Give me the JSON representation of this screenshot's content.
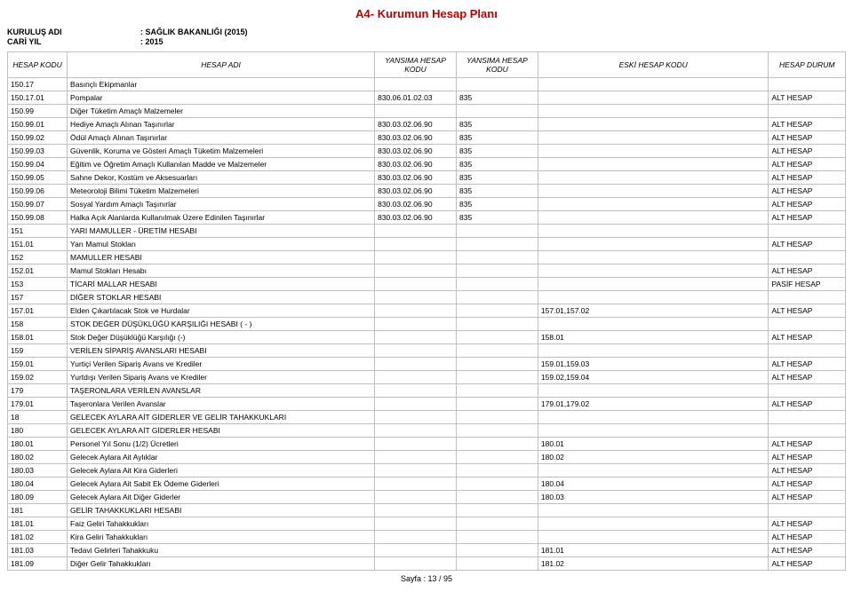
{
  "page_title": "A4- Kurumun Hesap Planı",
  "header": {
    "kurulus_label": "KURULUŞ ADI",
    "kurulus_value": ": SAĞLIK BAKANLIĞI (2015)",
    "cari_label": "CARİ YIL",
    "cari_value": ": 2015"
  },
  "columns": {
    "code": "HESAP KODU",
    "name": "HESAP ADI",
    "refl1": "YANSIMA HESAP KODU",
    "refl2": "YANSIMA HESAP KODU",
    "old": "ESKİ HESAP KODU",
    "status": "HESAP DURUM"
  },
  "rows": [
    {
      "code": "150.17",
      "name": "Basınçlı Ekipmanlar",
      "r1": "",
      "r2": "",
      "old": "",
      "stat": ""
    },
    {
      "code": "150.17.01",
      "name": "Pompalar",
      "r1": "830.06.01.02.03",
      "r2": "835",
      "old": "",
      "stat": "ALT HESAP"
    },
    {
      "code": "150.99",
      "name": "Diğer Tüketim Amaçlı Malzemeler",
      "r1": "",
      "r2": "",
      "old": "",
      "stat": ""
    },
    {
      "code": "150.99.01",
      "name": "Hediye Amaçlı Alınan Taşınırlar",
      "r1": "830.03.02.06.90",
      "r2": "835",
      "old": "",
      "stat": "ALT HESAP"
    },
    {
      "code": "150.99.02",
      "name": "Ödül Amaçlı Alınan Taşınırlar",
      "r1": "830.03.02.06.90",
      "r2": "835",
      "old": "",
      "stat": "ALT HESAP"
    },
    {
      "code": "150.99.03",
      "name": "Güvenlik, Koruma ve Gösteri Amaçlı Tüketim Malzemeleri",
      "r1": "830.03.02.06.90",
      "r2": "835",
      "old": "",
      "stat": "ALT HESAP"
    },
    {
      "code": "150.99.04",
      "name": "Eğitim ve Öğretim Amaçlı Kullanılan Madde ve Malzemeler",
      "r1": "830.03.02.06.90",
      "r2": "835",
      "old": "",
      "stat": "ALT HESAP"
    },
    {
      "code": "150.99.05",
      "name": "Sahne  Dekor, Kostüm ve Aksesuarları",
      "r1": "830.03.02.06.90",
      "r2": "835",
      "old": "",
      "stat": "ALT HESAP"
    },
    {
      "code": "150.99.06",
      "name": "Meteoroloji Bilimi Tüketim Malzemeleri",
      "r1": "830.03.02.06.90",
      "r2": "835",
      "old": "",
      "stat": "ALT HESAP"
    },
    {
      "code": "150.99.07",
      "name": "Sosyal Yardım Amaçlı Taşınırlar",
      "r1": "830.03.02.06.90",
      "r2": "835",
      "old": "",
      "stat": "ALT HESAP"
    },
    {
      "code": "150.99.08",
      "name": "Halka Açık Alanlarda Kullanılmak Üzere Edinilen Taşınırlar",
      "r1": "830.03.02.06.90",
      "r2": "835",
      "old": "",
      "stat": "ALT HESAP"
    },
    {
      "code": "151",
      "name": "YARI MAMULLER - ÜRETİM HESABI",
      "r1": "",
      "r2": "",
      "old": "",
      "stat": ""
    },
    {
      "code": "151.01",
      "name": "Yarı Mamul Stokları",
      "r1": "",
      "r2": "",
      "old": "",
      "stat": "ALT HESAP"
    },
    {
      "code": "152",
      "name": "MAMULLER HESABI",
      "r1": "",
      "r2": "",
      "old": "",
      "stat": ""
    },
    {
      "code": "152.01",
      "name": "Mamul Stokları Hesabı",
      "r1": "",
      "r2": "",
      "old": "",
      "stat": "ALT HESAP"
    },
    {
      "code": "153",
      "name": "TİCARİ MALLAR HESABI",
      "r1": "",
      "r2": "",
      "old": "",
      "stat": "PASİF HESAP"
    },
    {
      "code": "157",
      "name": "DİĞER STOKLAR HESABI",
      "r1": "",
      "r2": "",
      "old": "",
      "stat": ""
    },
    {
      "code": "157.01",
      "name": "Elden Çıkartılacak Stok ve Hurdalar",
      "r1": "",
      "r2": "",
      "old": "157.01,157.02",
      "stat": "ALT HESAP"
    },
    {
      "code": "158",
      "name": "STOK DEĞER DÜŞÜKLÜĞÜ KARŞILIĞI HESABI ( - )",
      "r1": "",
      "r2": "",
      "old": "",
      "stat": ""
    },
    {
      "code": "158.01",
      "name": "Stok Değer Düşüklüğü Karşılığı (-)",
      "r1": "",
      "r2": "",
      "old": "158.01",
      "stat": "ALT HESAP"
    },
    {
      "code": "159",
      "name": "VERİLEN SİPARİŞ AVANSLARI HESABI",
      "r1": "",
      "r2": "",
      "old": "",
      "stat": ""
    },
    {
      "code": "159.01",
      "name": "Yurtiçi Verilen Sipariş Avans ve Krediler",
      "r1": "",
      "r2": "",
      "old": "159.01,159.03",
      "stat": "ALT HESAP"
    },
    {
      "code": "159.02",
      "name": "Yurtdışı Verilen Sipariş Avans ve Krediler",
      "r1": "",
      "r2": "",
      "old": "159.02,159.04",
      "stat": "ALT HESAP"
    },
    {
      "code": "179",
      "name": "TAŞERONLARA VERİLEN AVANSLAR",
      "r1": "",
      "r2": "",
      "old": "",
      "stat": ""
    },
    {
      "code": "179.01",
      "name": "Taşeronlara Verilen Avanslar",
      "r1": "",
      "r2": "",
      "old": "179.01,179.02",
      "stat": "ALT HESAP"
    },
    {
      "code": "18",
      "name": "GELECEK AYLARA AİT GİDERLER VE GELİR TAHAKKUKLARI",
      "r1": "",
      "r2": "",
      "old": "",
      "stat": ""
    },
    {
      "code": "180",
      "name": "GELECEK AYLARA AİT GİDERLER HESABI",
      "r1": "",
      "r2": "",
      "old": "",
      "stat": ""
    },
    {
      "code": "180.01",
      "name": "Personel Yıl Sonu (1/2) Ücretleri",
      "r1": "",
      "r2": "",
      "old": "180.01",
      "stat": "ALT HESAP"
    },
    {
      "code": "180.02",
      "name": "Gelecek Aylara Ait Aylıklar",
      "r1": "",
      "r2": "",
      "old": "180.02",
      "stat": "ALT HESAP"
    },
    {
      "code": "180.03",
      "name": "Gelecek Aylara Ait Kira Giderleri",
      "r1": "",
      "r2": "",
      "old": "",
      "stat": "ALT HESAP"
    },
    {
      "code": "180.04",
      "name": "Gelecek Aylara Ait Sabit Ek Ödeme Giderleri",
      "r1": "",
      "r2": "",
      "old": "180.04",
      "stat": "ALT HESAP"
    },
    {
      "code": "180.09",
      "name": "Gelecek Aylara Ait Diğer Giderler",
      "r1": "",
      "r2": "",
      "old": "180.03",
      "stat": "ALT HESAP"
    },
    {
      "code": "181",
      "name": "GELİR TAHAKKUKLARI HESABI",
      "r1": "",
      "r2": "",
      "old": "",
      "stat": ""
    },
    {
      "code": "181.01",
      "name": "Faiz Geliri Tahakkukları",
      "r1": "",
      "r2": "",
      "old": "",
      "stat": "ALT HESAP"
    },
    {
      "code": "181.02",
      "name": "Kira Geliri Tahakkukları",
      "r1": "",
      "r2": "",
      "old": "",
      "stat": "ALT HESAP"
    },
    {
      "code": "181.03",
      "name": "Tedavi Gelirleri Tahakkuku",
      "r1": "",
      "r2": "",
      "old": "181.01",
      "stat": "ALT HESAP"
    },
    {
      "code": "181.09",
      "name": "Diğer Gelir Tahakkukları",
      "r1": "",
      "r2": "",
      "old": "181.02",
      "stat": "ALT HESAP"
    }
  ],
  "footer": "Sayfa : 13 / 95"
}
